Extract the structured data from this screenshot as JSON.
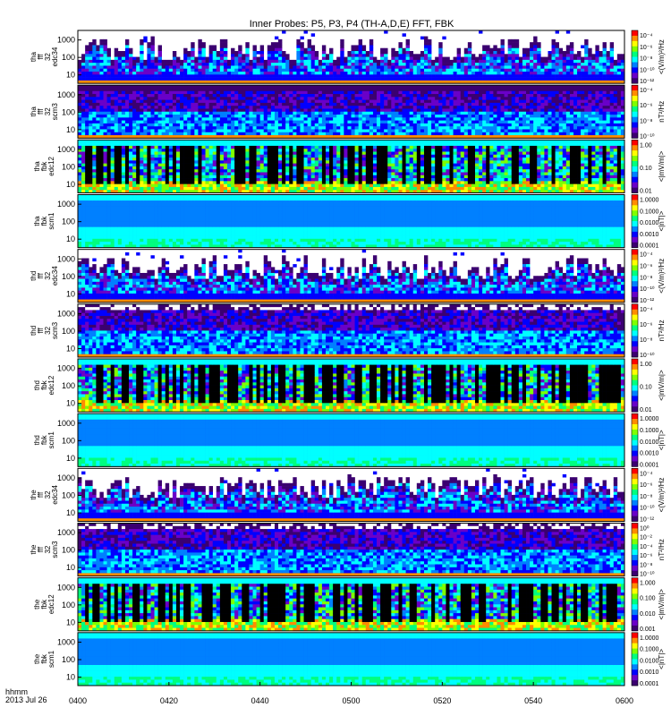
{
  "title": "Inner Probes: P5, P3, P4 (TH-A,D,E) FFT, FBK",
  "time_axis": {
    "title_line1": "hhmm",
    "title_line2": "2013 Jul 26",
    "ticks": [
      "0400",
      "0420",
      "0440",
      "0500",
      "0520",
      "0540",
      "0600"
    ]
  },
  "colors": {
    "empty": "#ffffff",
    "black": "#000000",
    "colorbar": [
      "#ff0000",
      "#ff8c00",
      "#ffff00",
      "#7fff00",
      "#00ff7f",
      "#00ffff",
      "#0080ff",
      "#0000ff",
      "#6a00c8",
      "#3b0070"
    ]
  },
  "chart_data": {
    "type": "heatmap",
    "time_range": [
      "04:00",
      "06:00"
    ],
    "freq_ticks": [
      "1000",
      "100",
      "10"
    ],
    "panels": [
      {
        "label": [
          "tha",
          "fff",
          "32",
          "edc34"
        ],
        "kind": "edc34",
        "cbar_label": "<(V/m)²/Hz",
        "cbar_ticks": [
          "10⁻⁴",
          "10⁻⁶",
          "10⁻⁸",
          "10⁻¹⁰",
          "10⁻¹²"
        ]
      },
      {
        "label": [
          "tha",
          "fff",
          "32",
          "scm3"
        ],
        "kind": "scm3",
        "cbar_label": "nT²/Hz",
        "cbar_ticks": [
          "10⁻⁴",
          "10⁻⁶",
          "10⁻⁸",
          "10⁻¹⁰"
        ]
      },
      {
        "label": [
          "tha",
          "fbk",
          "edc12"
        ],
        "kind": "edc12",
        "cbar_label": "<|mV/m|>",
        "cbar_ticks": [
          "1.00",
          "0.10",
          "0.01"
        ]
      },
      {
        "label": [
          "tha",
          "fbk",
          "scm1"
        ],
        "kind": "scm1",
        "cbar_label": "<|nT|>",
        "cbar_ticks": [
          "1.0000",
          "0.1000",
          "0.0100",
          "0.0010",
          "0.0001"
        ]
      },
      {
        "label": [
          "thd",
          "fff",
          "32",
          "edc34"
        ],
        "kind": "edc34",
        "cbar_label": "<(V/m)²/Hz",
        "cbar_ticks": [
          "10⁻⁴",
          "10⁻⁶",
          "10⁻⁸",
          "10⁻¹⁰",
          "10⁻¹²"
        ]
      },
      {
        "label": [
          "thd",
          "fff",
          "32",
          "scm3"
        ],
        "kind": "scm3b",
        "cbar_label": "nT²/Hz",
        "cbar_ticks": [
          "10⁻⁴",
          "10⁻⁶",
          "10⁻⁸",
          "10⁻¹⁰"
        ]
      },
      {
        "label": [
          "thd",
          "fbk",
          "edc12"
        ],
        "kind": "edc12",
        "cbar_label": "<|mV/m|>",
        "cbar_ticks": [
          "1.00",
          "0.10",
          "0.01"
        ]
      },
      {
        "label": [
          "thd",
          "fbk",
          "scm1"
        ],
        "kind": "scm1",
        "cbar_label": "<|nT|>",
        "cbar_ticks": [
          "1.0000",
          "0.1000",
          "0.0100",
          "0.0010",
          "0.0001"
        ]
      },
      {
        "label": [
          "the",
          "fff",
          "32",
          "edc34"
        ],
        "kind": "edc34",
        "cbar_label": "<(V/m)²/Hz",
        "cbar_ticks": [
          "10⁻⁴",
          "10⁻⁶",
          "10⁻⁸",
          "10⁻¹⁰",
          "10⁻¹²"
        ]
      },
      {
        "label": [
          "the",
          "fff",
          "32",
          "scm3"
        ],
        "kind": "scm3b",
        "cbar_label": "nT²/Hz",
        "cbar_ticks": [
          "10⁰",
          "10⁻²",
          "10⁻⁴",
          "10⁻⁶",
          "10⁻⁸",
          "10⁻¹⁰"
        ]
      },
      {
        "label": [
          "the",
          "fbk",
          "edc12"
        ],
        "kind": "edc12",
        "cbar_label": "<|mV/m|>",
        "cbar_ticks": [
          "1.000",
          "0.100",
          "0.010",
          "0.001"
        ]
      },
      {
        "label": [
          "the",
          "fbk",
          "scm1"
        ],
        "kind": "scm1",
        "cbar_label": "<|nT|>",
        "cbar_ticks": [
          "1.0000",
          "0.1000",
          "0.0100",
          "0.0010",
          "0.0001"
        ]
      }
    ]
  }
}
